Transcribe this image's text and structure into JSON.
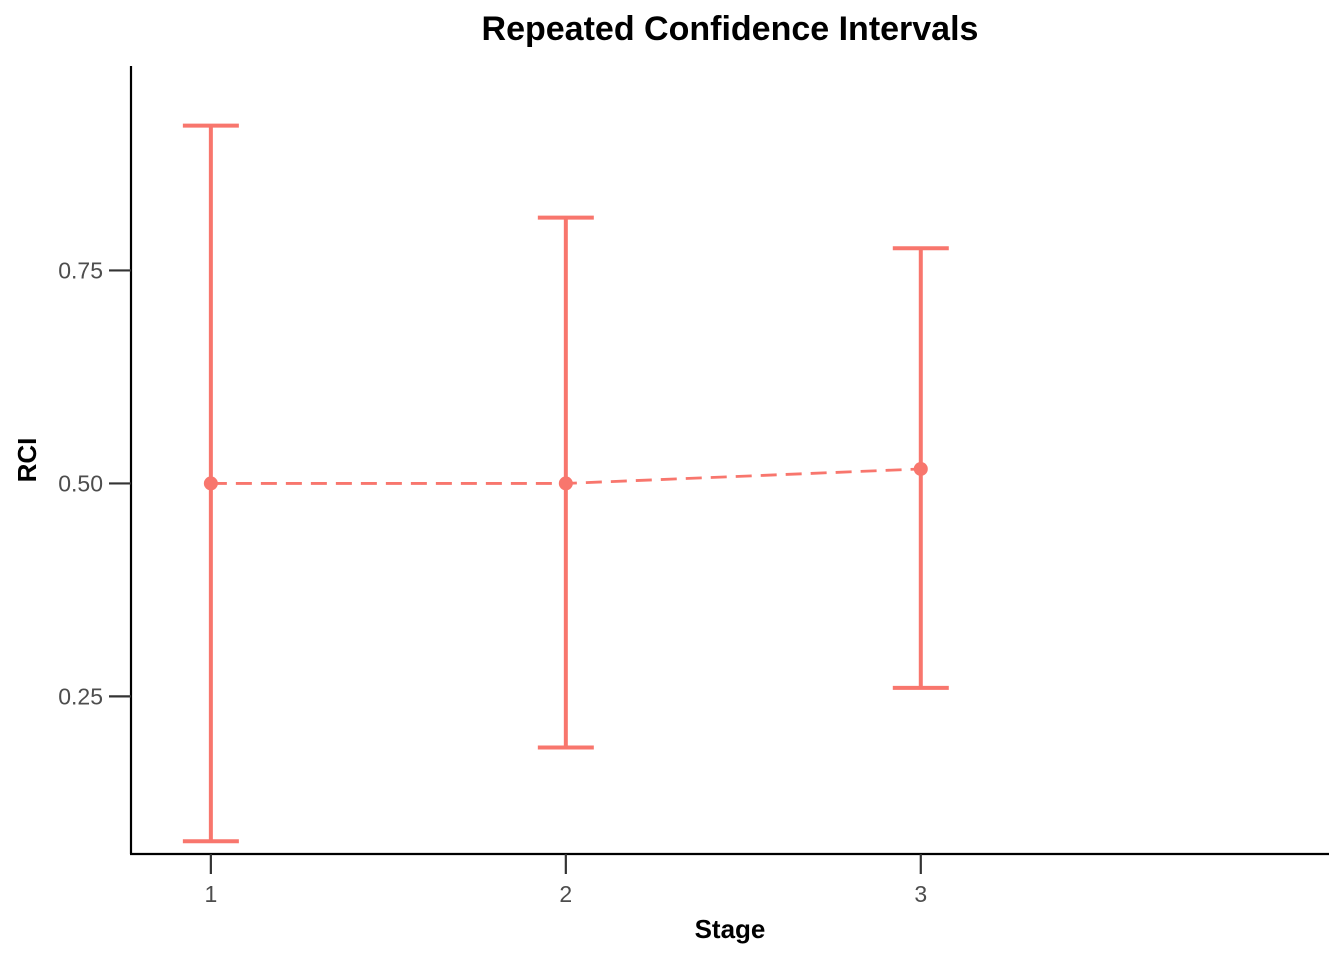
{
  "chart_data": {
    "type": "line",
    "title": "Repeated Confidence Intervals",
    "xlabel": "Stage",
    "ylabel": "RCI",
    "x": [
      1,
      2,
      3
    ],
    "x_tick_labels": [
      "1",
      "2",
      "3"
    ],
    "y_ticks": [
      0.25,
      0.5,
      0.75
    ],
    "y_tick_labels": [
      "0.25",
      "0.50",
      "0.75"
    ],
    "xlim": [
      0.775,
      4.15
    ],
    "ylim": [
      0.065,
      0.99
    ],
    "grid": false,
    "legend": "none",
    "series": [
      {
        "color": "#F8766D",
        "line_style": "dashed",
        "estimate": [
          0.5,
          0.5,
          0.517
        ],
        "lower": [
          0.08,
          0.19,
          0.26
        ],
        "upper": [
          0.92,
          0.812,
          0.776
        ]
      }
    ]
  }
}
